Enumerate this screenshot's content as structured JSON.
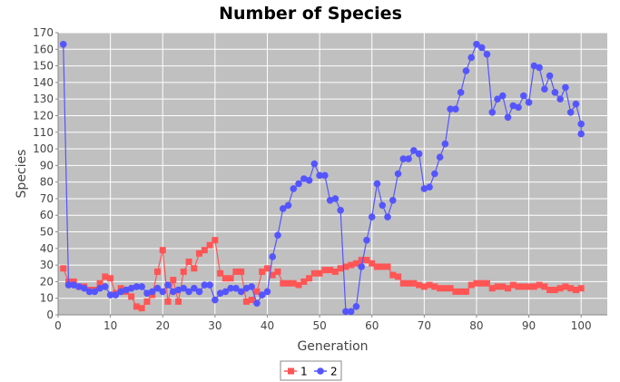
{
  "chart_data": {
    "type": "line",
    "title": "Number of Species",
    "xlabel": "Generation",
    "ylabel": "Species",
    "xlim": [
      0,
      105
    ],
    "ylim": [
      0,
      170
    ],
    "x_ticks": [
      0,
      10,
      20,
      30,
      40,
      50,
      60,
      70,
      80,
      90,
      100
    ],
    "y_ticks": [
      0,
      10,
      20,
      30,
      40,
      50,
      60,
      70,
      80,
      90,
      100,
      110,
      120,
      130,
      140,
      150,
      160,
      170
    ],
    "grid": true,
    "legend_position": "bottom",
    "plot_background": "#c0c0c0",
    "grid_color": "#ffffff",
    "series": [
      {
        "name": "1",
        "color": "#ff5555",
        "marker": "square",
        "x": [
          1,
          2,
          3,
          4,
          5,
          6,
          7,
          8,
          9,
          10,
          11,
          12,
          13,
          14,
          15,
          16,
          17,
          18,
          19,
          20,
          21,
          22,
          23,
          24,
          25,
          26,
          27,
          28,
          29,
          30,
          31,
          32,
          33,
          34,
          35,
          36,
          37,
          38,
          39,
          40,
          41,
          42,
          43,
          44,
          45,
          46,
          47,
          48,
          49,
          50,
          51,
          52,
          53,
          54,
          55,
          56,
          57,
          58,
          59,
          60,
          61,
          62,
          63,
          64,
          65,
          66,
          67,
          68,
          69,
          70,
          71,
          72,
          73,
          74,
          75,
          76,
          77,
          78,
          79,
          80,
          81,
          82,
          83,
          84,
          85,
          86,
          87,
          88,
          89,
          90,
          91,
          92,
          93,
          94,
          95,
          96,
          97,
          98,
          99,
          100
        ],
        "values": [
          28,
          20,
          20,
          17,
          17,
          15,
          15,
          19,
          23,
          22,
          13,
          16,
          14,
          11,
          5,
          4,
          8,
          12,
          26,
          39,
          8,
          21,
          8,
          26,
          32,
          28,
          37,
          39,
          42,
          45,
          25,
          22,
          22,
          26,
          26,
          8,
          9,
          14,
          26,
          28,
          24,
          26,
          19,
          19,
          19,
          18,
          20,
          22,
          25,
          25,
          27,
          27,
          26,
          28,
          29,
          30,
          31,
          33,
          33,
          31,
          29,
          29,
          29,
          24,
          23,
          19,
          19,
          19,
          18,
          17,
          18,
          17,
          16,
          16,
          16,
          14,
          14,
          14,
          18,
          19,
          19,
          19,
          16,
          17,
          17,
          16,
          18,
          17,
          17,
          17,
          17,
          18,
          17,
          15,
          15,
          16,
          17,
          16,
          15,
          16
        ]
      },
      {
        "name": "2",
        "color": "#5555ff",
        "marker": "circle",
        "x": [
          1,
          2,
          3,
          4,
          5,
          6,
          7,
          8,
          9,
          10,
          11,
          12,
          13,
          14,
          15,
          16,
          17,
          18,
          19,
          20,
          21,
          22,
          23,
          24,
          25,
          26,
          27,
          28,
          29,
          30,
          31,
          32,
          33,
          34,
          35,
          36,
          37,
          38,
          39,
          40,
          41,
          42,
          43,
          44,
          45,
          46,
          47,
          48,
          49,
          50,
          51,
          52,
          53,
          54,
          55,
          56,
          57,
          58,
          59,
          60,
          61,
          62,
          63,
          64,
          65,
          66,
          67,
          68,
          69,
          70,
          71,
          72,
          73,
          74,
          75,
          76,
          77,
          78,
          79,
          80,
          81,
          82,
          83,
          84,
          85,
          86,
          87,
          88,
          89,
          90,
          91,
          92,
          93,
          94,
          95,
          96,
          97,
          98,
          99,
          100
        ],
        "values": [
          163,
          18,
          18,
          17,
          16,
          14,
          14,
          16,
          17,
          12,
          12,
          14,
          15,
          16,
          17,
          17,
          13,
          14,
          16,
          14,
          18,
          14,
          15,
          16,
          14,
          16,
          14,
          18,
          18,
          9,
          13,
          14,
          16,
          16,
          14,
          16,
          17,
          7,
          12,
          14,
          35,
          48,
          64,
          66,
          76,
          79,
          82,
          81,
          91,
          84,
          84,
          69,
          70,
          63,
          2,
          2,
          5,
          29,
          45,
          59,
          79,
          66,
          59,
          69,
          85,
          94,
          94,
          99,
          97,
          76,
          77,
          85,
          95,
          103,
          124,
          124,
          134,
          147,
          155,
          163,
          161,
          157,
          122,
          130,
          132,
          119,
          126,
          125,
          132,
          128,
          150,
          149,
          136,
          144,
          134,
          130,
          137,
          122,
          127,
          115
        ]
      }
    ],
    "extra_point": {
      "series": "2",
      "x": 100,
      "y": 109
    }
  }
}
